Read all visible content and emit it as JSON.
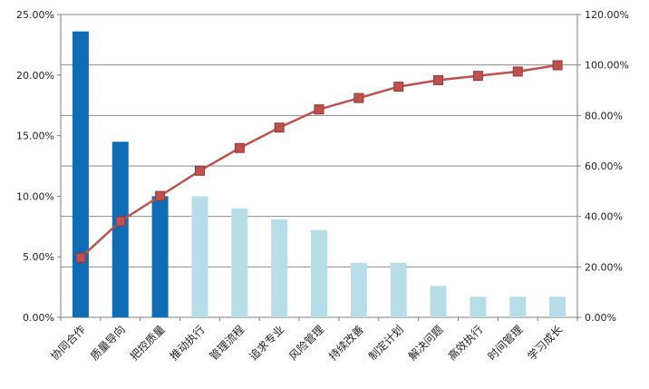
{
  "chart_data": {
    "type": "bar",
    "combo": "bar-line-pareto",
    "categories": [
      "协同合作",
      "质量导向",
      "把控质量",
      "推动执行",
      "管理流程",
      "追求专业",
      "风险管理",
      "持续改善",
      "制定计划",
      "解决问题",
      "高效执行",
      "时间管理",
      "学习成长"
    ],
    "series": [
      {
        "type": "bar",
        "axis": "left",
        "values": [
          23.6,
          14.5,
          10.0,
          10.0,
          9.0,
          8.1,
          7.2,
          4.5,
          4.5,
          2.6,
          1.7,
          1.7,
          1.7
        ],
        "colors": [
          "#0f6db6",
          "#0f6db6",
          "#0f6db6",
          "#b7dde8",
          "#b7dde8",
          "#b7dde8",
          "#b7dde8",
          "#b7dde8",
          "#b7dde8",
          "#b7dde8",
          "#b7dde8",
          "#b7dde8",
          "#b7dde8"
        ]
      },
      {
        "type": "line",
        "axis": "right",
        "values": [
          23.6,
          38.1,
          48.1,
          58.1,
          67.1,
          75.2,
          82.4,
          86.9,
          91.4,
          94.0,
          95.7,
          97.4,
          99.9
        ],
        "color": "#c0504d",
        "marker": "square"
      }
    ],
    "y_left": {
      "ticks": [
        0,
        5,
        10,
        15,
        20,
        25
      ],
      "tick_labels": [
        "0.00%",
        "5.00%",
        "10.00%",
        "15.00%",
        "20.00%",
        "25.00%"
      ],
      "ylim": [
        0,
        25
      ]
    },
    "y_right": {
      "ticks": [
        0,
        20,
        40,
        60,
        80,
        100,
        120
      ],
      "tick_labels": [
        "0.00%",
        "20.00%",
        "40.00%",
        "60.00%",
        "80.00%",
        "100.00%",
        "120.00%"
      ],
      "ylim": [
        0,
        120
      ]
    },
    "grid": true,
    "legend": "none",
    "title": "",
    "xlabel": "",
    "ylabel": ""
  }
}
